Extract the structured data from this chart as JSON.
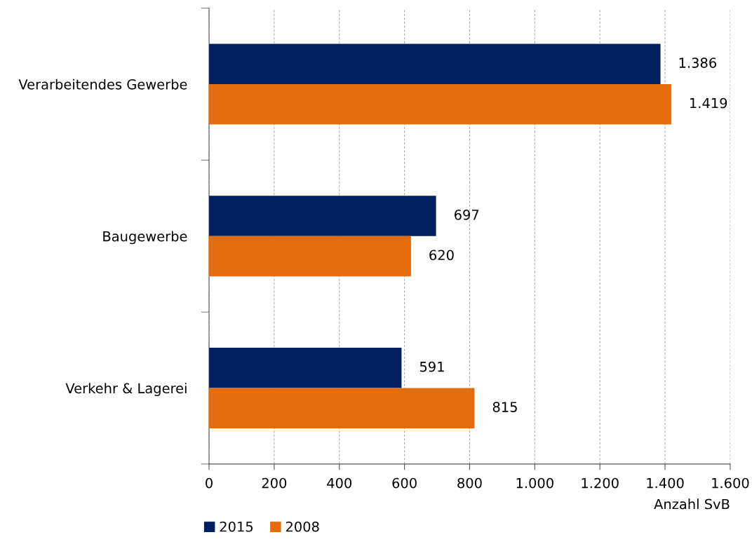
{
  "chart_data": {
    "type": "bar",
    "orientation": "horizontal",
    "categories": [
      "Verarbeitendes Gewerbe",
      "Baugewerbe",
      "Verkehr & Lagerei"
    ],
    "series": [
      {
        "name": "2015",
        "color": "#002060",
        "values": [
          1386,
          697,
          591
        ],
        "value_labels": [
          "1.386",
          "697",
          "591"
        ]
      },
      {
        "name": "2008",
        "color": "#e46c0a",
        "values": [
          1419,
          620,
          815
        ],
        "value_labels": [
          "1.419",
          "620",
          "815"
        ]
      }
    ],
    "xlabel": "Anzahl SvB",
    "xlim": [
      0,
      1600
    ],
    "xticks": [
      0,
      200,
      400,
      600,
      800,
      {
        "value": 1000,
        "label": "1.000"
      },
      {
        "value": 1200,
        "label": "1.200"
      },
      {
        "value": 1400,
        "label": "1.400"
      },
      {
        "value": 1600,
        "label": "1.600"
      }
    ],
    "grid": "x",
    "legend": "bottom left"
  }
}
